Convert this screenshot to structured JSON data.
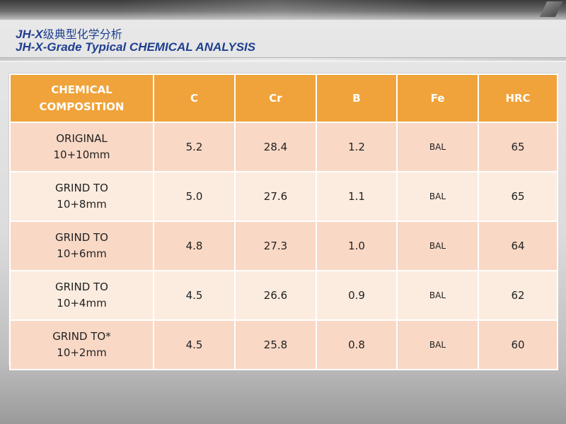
{
  "slide": {
    "title_prefix": "JH-X",
    "title_cn": "级典型化学分析",
    "title_en": "JH-X-Grade Typical CHEMICAL ANALYSIS"
  },
  "table": {
    "header": {
      "composition_line1": "CHEMICAL",
      "composition_line2": "COMPOSITION",
      "c": "C",
      "cr": "Cr",
      "b": "B",
      "fe": "Fe",
      "hrc": "HRC"
    },
    "rows": [
      {
        "label1": "ORIGINAL",
        "label2": "10+10mm",
        "c": "5.2",
        "cr": "28.4",
        "b": "1.2",
        "fe": "BAL",
        "hrc": "65"
      },
      {
        "label1": "GRIND TO",
        "label2": "10+8mm",
        "c": "5.0",
        "cr": "27.6",
        "b": "1.1",
        "fe": "BAL",
        "hrc": "65"
      },
      {
        "label1": "GRIND TO",
        "label2": "10+6mm",
        "c": "4.8",
        "cr": "27.3",
        "b": "1.0",
        "fe": "BAL",
        "hrc": "64"
      },
      {
        "label1": "GRIND TO",
        "label2": "10+4mm",
        "c": "4.5",
        "cr": "26.6",
        "b": "0.9",
        "fe": "BAL",
        "hrc": "62"
      },
      {
        "label1": "GRIND TO*",
        "label2": "10+2mm",
        "c": "4.5",
        "cr": "25.8",
        "b": "0.8",
        "fe": "BAL",
        "hrc": "60"
      }
    ]
  },
  "colors": {
    "header_bg": "#f0a33a",
    "row_odd": "#f9d8c6",
    "row_even": "#fcecdf",
    "title": "#1f3f8f"
  }
}
